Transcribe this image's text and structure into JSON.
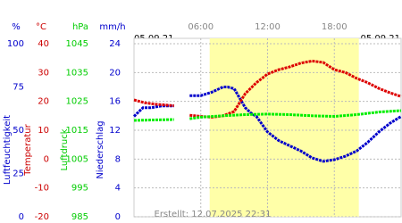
{
  "chart_data": {
    "type": "line",
    "date_left": "05.09.21",
    "date_right": "05.09.21",
    "created": "Erstellt: 12.07.2025 22:31",
    "xlim": [
      0,
      24
    ],
    "xticks": [
      {
        "value": 6,
        "label": "06:00"
      },
      {
        "value": 12,
        "label": "12:00"
      },
      {
        "value": 18,
        "label": "18:00"
      }
    ],
    "daylight": [
      6.8,
      20.2
    ],
    "grid": true,
    "axes": [
      {
        "title": "Luftfeuchtigkeit",
        "unit": "%",
        "color": "#0000cc",
        "ylim": [
          0,
          100
        ],
        "yticks": [
          0,
          25,
          50,
          75,
          100
        ]
      },
      {
        "title": "Temperatur",
        "unit": "°C",
        "color": "#cc0000",
        "ylim": [
          -20,
          40
        ],
        "yticks": [
          -20,
          -10,
          0,
          10,
          20,
          30,
          40
        ]
      },
      {
        "title": "Luftdruck",
        "unit": "hPa",
        "color": "#00cc00",
        "ylim": [
          985,
          1045
        ],
        "yticks": [
          985,
          995,
          1005,
          1015,
          1025,
          1035,
          1045
        ]
      },
      {
        "title": "Niederschlag",
        "unit": "mm/h",
        "color": "#0000cc",
        "ylim": [
          0,
          24
        ],
        "yticks": [
          0,
          4,
          8,
          12,
          16,
          20,
          24
        ]
      }
    ],
    "series": [
      {
        "name": "Luftfeuchtigkeit",
        "axis": 0,
        "color": "#0000cc",
        "x": [
          0,
          0.8,
          1.5,
          2.5,
          3.6,
          4.4,
          5,
          6,
          7,
          8,
          8.4,
          9,
          10,
          10.5,
          11,
          12,
          13,
          14,
          15,
          16,
          17,
          18,
          19,
          20,
          21,
          22,
          23,
          24
        ],
        "values": [
          58,
          63,
          63,
          64,
          64,
          null,
          70,
          70,
          72,
          75,
          75,
          74,
          63,
          60,
          58,
          49,
          44,
          41,
          38,
          34,
          32,
          33,
          35,
          38,
          43,
          49,
          54,
          58
        ]
      },
      {
        "name": "Temperatur",
        "axis": 1,
        "color": "#dd0000",
        "x": [
          0,
          1,
          2,
          3.6,
          4.4,
          5,
          6,
          7,
          8,
          9,
          10,
          11,
          12,
          13,
          14,
          15,
          16,
          17,
          18,
          19,
          20,
          21,
          22,
          23,
          24
        ],
        "values": [
          20.5,
          19.5,
          19,
          18.5,
          null,
          15.2,
          14.8,
          14.5,
          15,
          16.5,
          22.7,
          26.5,
          29.5,
          31,
          32,
          33.3,
          34,
          33.5,
          31,
          30,
          28,
          26.5,
          24.5,
          23,
          21.7
        ]
      },
      {
        "name": "Luftdruck",
        "axis": 2,
        "color": "#00ee00",
        "x": [
          0,
          2,
          3.6,
          4.4,
          5,
          6,
          8,
          10,
          12,
          14,
          16,
          18,
          20,
          22,
          24
        ],
        "values": [
          1018.4,
          1018.6,
          1018.7,
          null,
          1019,
          1019.5,
          1020,
          1020.4,
          1020.6,
          1020.4,
          1020,
          1019.8,
          1020.4,
          1021.3,
          1021.8
        ]
      }
    ]
  }
}
